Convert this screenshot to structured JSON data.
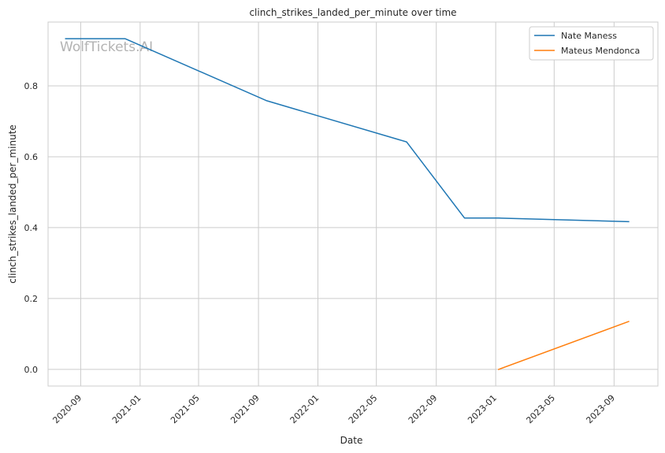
{
  "watermark": "WolfTickets.AI",
  "chart_data": {
    "type": "line",
    "title": "clinch_strikes_landed_per_minute over time",
    "xlabel": "Date",
    "ylabel": "clinch_strikes_landed_per_minute",
    "x_ticks": [
      "2020-09",
      "2021-01",
      "2021-05",
      "2021-09",
      "2022-01",
      "2022-05",
      "2022-09",
      "2023-01",
      "2023-05",
      "2023-09"
    ],
    "y_ticks": [
      0.0,
      0.2,
      0.4,
      0.6,
      0.8
    ],
    "y_tick_labels": [
      "0.0",
      "0.2",
      "0.4",
      "0.6",
      "0.8"
    ],
    "xlim": [
      "2020-06-26",
      "2023-11-30"
    ],
    "ylim": [
      -0.047,
      0.98
    ],
    "grid": true,
    "legend_position": "top-right",
    "series": [
      {
        "name": "Nate Maness",
        "color": "#1f77b4",
        "points": [
          {
            "x": "2020-08-01",
            "y": 0.933
          },
          {
            "x": "2020-12-01",
            "y": 0.933
          },
          {
            "x": "2021-09-18",
            "y": 0.758
          },
          {
            "x": "2022-07-02",
            "y": 0.642
          },
          {
            "x": "2022-10-29",
            "y": 0.427
          },
          {
            "x": "2023-01-07",
            "y": 0.427
          },
          {
            "x": "2023-10-01",
            "y": 0.417
          }
        ]
      },
      {
        "name": "Mateus Mendonca",
        "color": "#ff7f0e",
        "points": [
          {
            "x": "2023-01-07",
            "y": 0.0
          },
          {
            "x": "2023-10-01",
            "y": 0.135
          }
        ]
      }
    ]
  }
}
